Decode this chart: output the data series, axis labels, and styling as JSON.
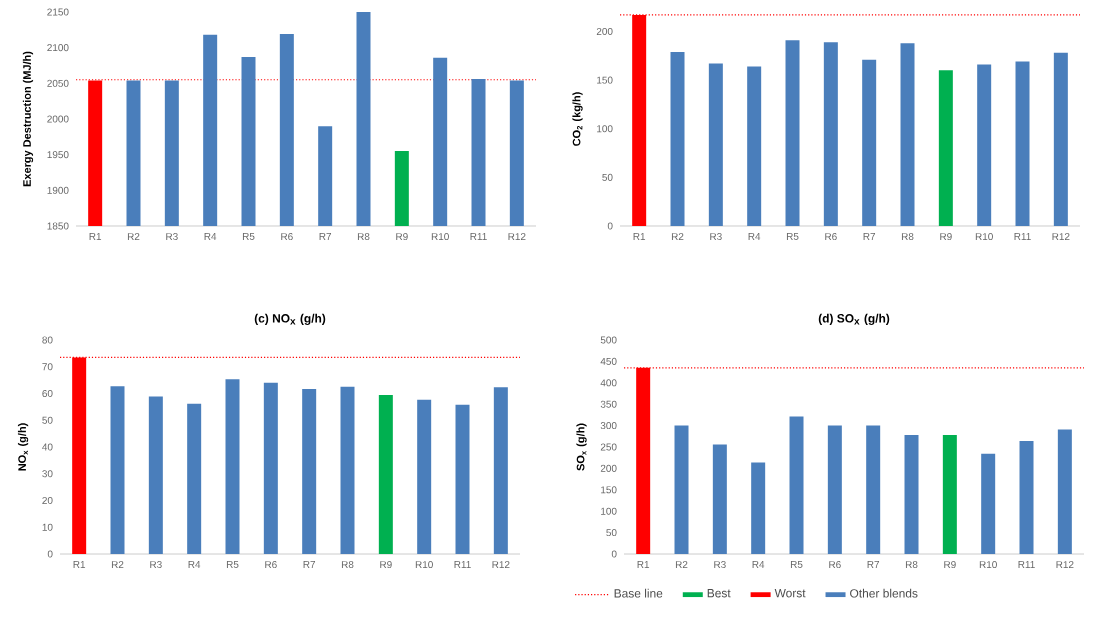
{
  "chart_data": [
    {
      "type": "bar",
      "ylabel": "Exergy Destruction (MJ/h)",
      "categories": [
        "R1",
        "R2",
        "R3",
        "R4",
        "R5",
        "R6",
        "R7",
        "R8",
        "R9",
        "R10",
        "R11",
        "R12"
      ],
      "values": [
        2054,
        2054,
        2054,
        2118,
        2087,
        2119,
        1990,
        2150,
        1955,
        2086,
        2056,
        2054
      ],
      "colors": [
        "#ff0000",
        "#4a7ebb",
        "#4a7ebb",
        "#4a7ebb",
        "#4a7ebb",
        "#4a7ebb",
        "#4a7ebb",
        "#4a7ebb",
        "#00b050",
        "#4a7ebb",
        "#4a7ebb",
        "#4a7ebb"
      ],
      "ylim": [
        1850,
        2150
      ],
      "yticks": [
        1850,
        1900,
        1950,
        2000,
        2050,
        2100,
        2150
      ],
      "ref_lines": [
        {
          "axis": "y",
          "value": 2055,
          "color": "#ff0000",
          "line_style": "dotted"
        }
      ]
    },
    {
      "type": "bar",
      "ylabel": "CO$_{2}$ (kg/h)",
      "categories": [
        "R1",
        "R2",
        "R3",
        "R4",
        "R5",
        "R6",
        "R7",
        "R8",
        "R9",
        "R10",
        "R11",
        "R12"
      ],
      "values": [
        217,
        179,
        167,
        164,
        191,
        189,
        171,
        188,
        160,
        166,
        169,
        178
      ],
      "colors": [
        "#ff0000",
        "#4a7ebb",
        "#4a7ebb",
        "#4a7ebb",
        "#4a7ebb",
        "#4a7ebb",
        "#4a7ebb",
        "#4a7ebb",
        "#00b050",
        "#4a7ebb",
        "#4a7ebb",
        "#4a7ebb"
      ],
      "ylim": [
        0,
        220
      ],
      "yticks": [
        0,
        50,
        100,
        150,
        200
      ],
      "ref_lines": [
        {
          "axis": "y",
          "value": 217,
          "color": "#ff0000",
          "line_style": "dotted"
        }
      ]
    },
    {
      "type": "bar",
      "title": "(c) NO$_{x}$ (g/h)",
      "ylabel": "NO$_{x}$ (g/h)",
      "categories": [
        "R1",
        "R2",
        "R3",
        "R4",
        "R5",
        "R6",
        "R7",
        "R8",
        "R9",
        "R10",
        "R11",
        "R12"
      ],
      "values": [
        73.5,
        62.7,
        58.9,
        56.2,
        65.3,
        64,
        61.7,
        62.5,
        59.4,
        57.7,
        55.8,
        62.3
      ],
      "colors": [
        "#ff0000",
        "#4a7ebb",
        "#4a7ebb",
        "#4a7ebb",
        "#4a7ebb",
        "#4a7ebb",
        "#4a7ebb",
        "#4a7ebb",
        "#00b050",
        "#4a7ebb",
        "#4a7ebb",
        "#4a7ebb"
      ],
      "ylim": [
        0,
        80
      ],
      "yticks": [
        0,
        10,
        20,
        30,
        40,
        50,
        60,
        70,
        80
      ],
      "ref_lines": [
        {
          "axis": "y",
          "value": 73.5,
          "color": "#ff0000",
          "line_style": "dotted"
        }
      ]
    },
    {
      "type": "bar",
      "title": "(d) SO$_{x}$ (g/h)",
      "ylabel": "SO$_{x}$ (g/h)",
      "categories": [
        "R1",
        "R2",
        "R3",
        "R4",
        "R5",
        "R6",
        "R7",
        "R8",
        "R9",
        "R10",
        "R11",
        "R12"
      ],
      "stacked": true,
      "series": [
        {
          "name": "Best",
          "color": "#00b050",
          "values": [
            null,
            null,
            null,
            null,
            null,
            null,
            null,
            null,
            278,
            null,
            null,
            null
          ]
        },
        {
          "name": "Worst",
          "color": "#ff0000",
          "values": [
            435,
            null,
            null,
            null,
            null,
            null,
            null,
            null,
            null,
            null,
            null,
            null
          ]
        },
        {
          "name": "Other blends",
          "color": "#4a7ebb",
          "values": [
            null,
            300,
            256,
            214,
            321,
            300,
            300,
            278,
            null,
            234,
            264,
            291
          ]
        }
      ],
      "ylim": [
        0,
        500
      ],
      "yticks": [
        0,
        50,
        100,
        150,
        200,
        250,
        300,
        350,
        400,
        450,
        500
      ],
      "ref_lines": [
        {
          "axis": "y",
          "value": 435,
          "color": "#ff0000",
          "line_style": "dotted",
          "label": "Base line"
        }
      ],
      "legend": "bottom"
    }
  ]
}
